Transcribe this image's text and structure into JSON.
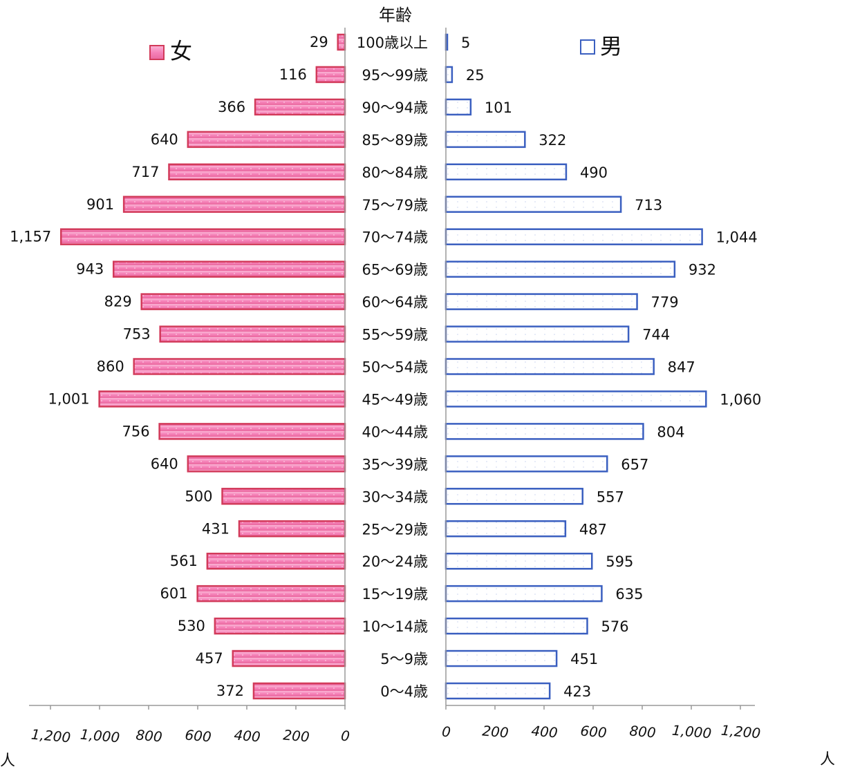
{
  "chart_data": {
    "type": "bar",
    "orientation": "horizontal",
    "layout": "population-pyramid",
    "title": "年齢",
    "unit_left": "人",
    "unit_right": "人",
    "categories": [
      "100歳以上",
      "95〜99歳",
      "90〜94歳",
      "85〜89歳",
      "80〜84歳",
      "75〜79歳",
      "70〜74歳",
      "65〜69歳",
      "60〜64歳",
      "55〜59歳",
      "50〜54歳",
      "45〜49歳",
      "40〜44歳",
      "35〜39歳",
      "30〜34歳",
      "25〜29歳",
      "20〜24歳",
      "15〜19歳",
      "10〜14歳",
      "5〜9歳",
      "0〜4歳"
    ],
    "series": [
      {
        "name": "女",
        "side": "left",
        "color": "#f48cc0",
        "border": "#d23a5a",
        "values": [
          29,
          116,
          366,
          640,
          717,
          901,
          1157,
          943,
          829,
          753,
          860,
          1001,
          756,
          640,
          500,
          431,
          561,
          601,
          530,
          457,
          372
        ],
        "value_labels": [
          "29",
          "116",
          "366",
          "640",
          "717",
          "901",
          "1,157",
          "943",
          "829",
          "753",
          "860",
          "1,001",
          "756",
          "640",
          "500",
          "431",
          "561",
          "601",
          "530",
          "457",
          "372"
        ]
      },
      {
        "name": "男",
        "side": "right",
        "color": "#ffffff",
        "border": "#3a5fc0",
        "values": [
          5,
          25,
          101,
          322,
          490,
          713,
          1044,
          932,
          779,
          744,
          847,
          1060,
          804,
          657,
          557,
          487,
          595,
          635,
          576,
          451,
          423
        ],
        "value_labels": [
          "5",
          "25",
          "101",
          "322",
          "490",
          "713",
          "1,044",
          "932",
          "779",
          "744",
          "847",
          "1,060",
          "804",
          "657",
          "557",
          "487",
          "595",
          "635",
          "576",
          "451",
          "423"
        ]
      }
    ],
    "axis_ticks": [
      0,
      200,
      400,
      600,
      800,
      1000,
      1200
    ],
    "axis_tick_labels": [
      "0",
      "200",
      "400",
      "600",
      "800",
      "1,000",
      "1,200"
    ],
    "xlim": [
      0,
      1250
    ],
    "grid": false,
    "legend": "top"
  }
}
